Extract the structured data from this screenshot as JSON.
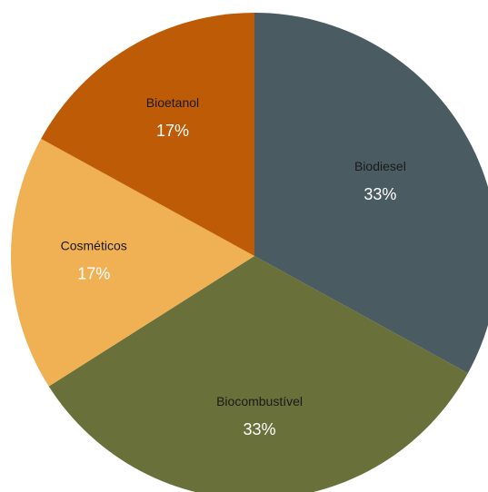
{
  "chart_data": {
    "type": "pie",
    "slices": [
      {
        "label": "Biodiesel",
        "value": 33,
        "value_label": "33%",
        "color": "#4a5c62"
      },
      {
        "label": "Biocombustível",
        "value": 33,
        "value_label": "33%",
        "color": "#6a7039"
      },
      {
        "label": "Cosméticos",
        "value": 17,
        "value_label": "17%",
        "color": "#f0b154"
      },
      {
        "label": "Bioetanol",
        "value": 17,
        "value_label": "17%",
        "color": "#bd5b06"
      }
    ],
    "start": "12 o'clock",
    "direction": "clockwise",
    "legend": "none"
  }
}
